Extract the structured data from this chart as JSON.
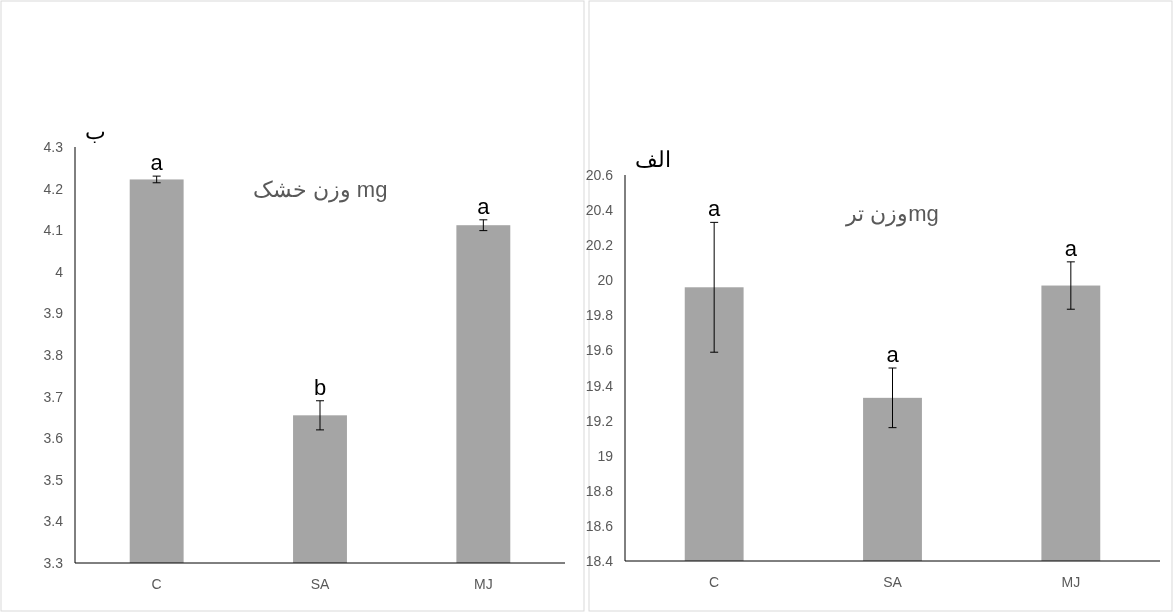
{
  "chart_data": [
    {
      "type": "bar",
      "title": "وزن خشک mg",
      "categories": [
        "C",
        "SA",
        "MJ"
      ],
      "values": [
        4.222,
        3.655,
        4.112
      ],
      "errors": [
        0.008,
        0.035,
        0.013
      ],
      "color": "#a5a5a5",
      "ylim": [
        3.3,
        4.3
      ],
      "yticks": [
        3.3,
        3.4,
        3.5,
        3.6,
        3.7,
        3.8,
        3.9,
        4,
        4.1,
        4.2,
        4.3
      ],
      "annotations": [
        "ب",
        {
          "text": "a",
          "x": "C",
          "y": 4.23
        },
        {
          "text": "b",
          "x": "SA",
          "y": 3.69
        },
        {
          "text": "a",
          "x": "MJ",
          "y": 4.125
        }
      ]
    },
    {
      "type": "bar",
      "title": "وزن ترmg",
      "categories": [
        "C",
        "SA",
        "MJ"
      ],
      "values": [
        19.96,
        19.33,
        19.97
      ],
      "errors": [
        0.37,
        0.17,
        0.135
      ],
      "color": "#a5a5a5",
      "ylim": [
        18.4,
        20.6
      ],
      "yticks": [
        18.4,
        18.6,
        18.8,
        19,
        19.2,
        19.4,
        19.6,
        19.8,
        20,
        20.2,
        20.4,
        20.6
      ],
      "annotations": [
        "الف",
        {
          "text": "a",
          "x": "C",
          "y": 20.33
        },
        {
          "text": "a",
          "x": "SA",
          "y": 19.5
        },
        {
          "text": "a",
          "x": "MJ",
          "y": 20.105
        }
      ]
    }
  ]
}
